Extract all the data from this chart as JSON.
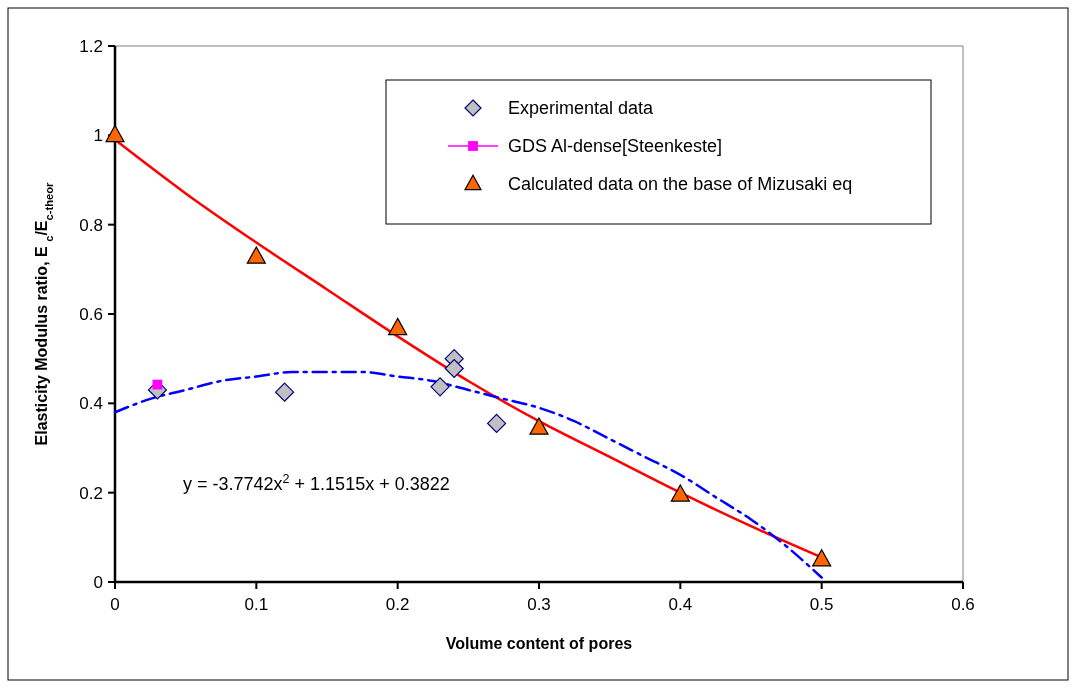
{
  "chart_data": {
    "type": "scatter",
    "xlabel": "Volume content of pores",
    "ylabel": "Elasticity Modulus ratio, E $_{c}$/E$_{c-theor}$",
    "xlim": [
      0,
      0.6
    ],
    "xticks": [
      0,
      0.1,
      0.2,
      0.3,
      0.4,
      0.5,
      0.6
    ],
    "ylim": [
      0,
      1.2
    ],
    "yticks": [
      0,
      0.2,
      0.4,
      0.6,
      0.8,
      1,
      1.2
    ],
    "grid": false,
    "legend": "top right",
    "annotations": [
      "y = -3.7742x$^{2}$ + 1.1515x + 0.3822"
    ],
    "series": [
      {
        "type": "line",
        "color": "#ff0000",
        "marker": "none",
        "line_style": "solid",
        "x": [
          0,
          0.05,
          0.1,
          0.15,
          0.2,
          0.25,
          0.3,
          0.35,
          0.4,
          0.45,
          0.5
        ],
        "values": [
          0.99,
          0.87,
          0.76,
          0.655,
          0.55,
          0.45,
          0.36,
          0.28,
          0.2,
          0.125,
          0.055
        ]
      },
      {
        "type": "line",
        "color": "#0000ff",
        "marker": "none",
        "line_style": "dashed",
        "x": [
          0,
          0.025,
          0.05,
          0.075,
          0.1,
          0.125,
          0.15,
          0.175,
          0.2,
          0.225,
          0.25,
          0.275,
          0.3,
          0.325,
          0.35,
          0.375,
          0.4,
          0.425,
          0.45,
          0.475,
          0.5
        ],
        "values": [
          0.38,
          0.41,
          0.43,
          0.45,
          0.46,
          0.47,
          0.47,
          0.47,
          0.46,
          0.45,
          0.43,
          0.41,
          0.39,
          0.36,
          0.32,
          0.28,
          0.24,
          0.19,
          0.14,
          0.08,
          0.01
        ]
      },
      {
        "name": "Experimental data",
        "type": "scatter",
        "color": "#c0c0c0",
        "marker": "diamond",
        "x": [
          0.03,
          0.12,
          0.23,
          0.24,
          0.24,
          0.27
        ],
        "values": [
          0.43,
          0.425,
          0.437,
          0.5,
          0.478,
          0.355
        ]
      },
      {
        "name": "GDS Al-dense[Steenkeste]",
        "type": "line",
        "color": "#ff00ff",
        "marker": "square",
        "x": [
          0.03
        ],
        "values": [
          0.442
        ]
      },
      {
        "name": "Calculated data on the base of Mizusaki eq",
        "type": "scatter",
        "color": "#ff6600",
        "marker": "triangle",
        "x": [
          0,
          0.1,
          0.2,
          0.3,
          0.4,
          0.5
        ],
        "values": [
          1,
          0.728,
          0.568,
          0.345,
          0.195,
          0.05
        ]
      }
    ]
  }
}
